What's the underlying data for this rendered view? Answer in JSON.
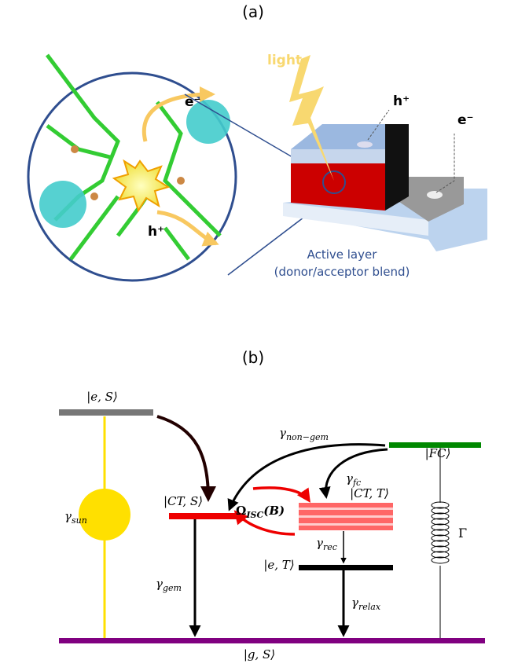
{
  "panel_a": {
    "label": "(a)",
    "light": "light",
    "electron": "e⁻",
    "hole": "h⁺",
    "device_hole": "h⁺",
    "device_electron": "e⁻",
    "caption": [
      "Active layer",
      "(donor/acceptor blend)"
    ]
  },
  "panel_b": {
    "label": "(b)",
    "states": {
      "e_S": "|e, S⟩",
      "CT_S": "|CT, S⟩",
      "FC": "|FC⟩",
      "CT_T": "|CT, T⟩",
      "e_T": "|e, T⟩",
      "g_S": "|g, S⟩"
    },
    "rates": {
      "sun": {
        "symbol": "γ",
        "sub": "sun"
      },
      "gem": {
        "symbol": "γ",
        "sub": "gem"
      },
      "non_gem": {
        "symbol": "γ",
        "sub": "non−gem"
      },
      "fc": {
        "symbol": "γ",
        "sub": "fc"
      },
      "rec": {
        "symbol": "γ",
        "sub": "rec"
      },
      "relax": {
        "symbol": "γ",
        "sub": "relax"
      },
      "isc": {
        "symbol": "Ω",
        "sub": "ISC",
        "suffix": "(B)"
      },
      "damping": "Γ"
    }
  }
}
